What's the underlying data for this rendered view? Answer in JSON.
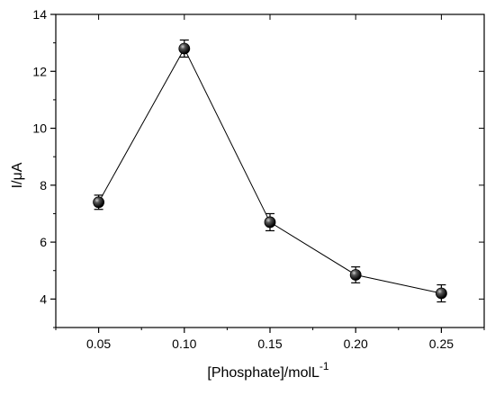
{
  "chart_data": {
    "type": "scatter",
    "title": "",
    "xlabel": "[Phosphate]/molL",
    "xlabel_superscript": "-1",
    "ylabel": "I/μA",
    "xlim": [
      0.025,
      0.275
    ],
    "ylim": [
      3,
      14
    ],
    "x_ticks": [
      "0.05",
      "0.10",
      "0.15",
      "0.20",
      "0.25"
    ],
    "y_ticks": [
      "4",
      "6",
      "8",
      "10",
      "12",
      "14"
    ],
    "x_tick_values": [
      0.05,
      0.1,
      0.15,
      0.2,
      0.25
    ],
    "y_tick_values": [
      4,
      6,
      8,
      10,
      12,
      14
    ],
    "grid": false,
    "legend": "none",
    "series": [
      {
        "x": [
          0.05,
          0.1,
          0.15,
          0.2,
          0.25
        ],
        "y": [
          7.4,
          12.8,
          6.7,
          4.85,
          4.2
        ],
        "error": [
          0.25,
          0.3,
          0.3,
          0.28,
          0.3
        ],
        "marker": "filled-circle",
        "line": "connected",
        "color": "#000000"
      }
    ]
  }
}
